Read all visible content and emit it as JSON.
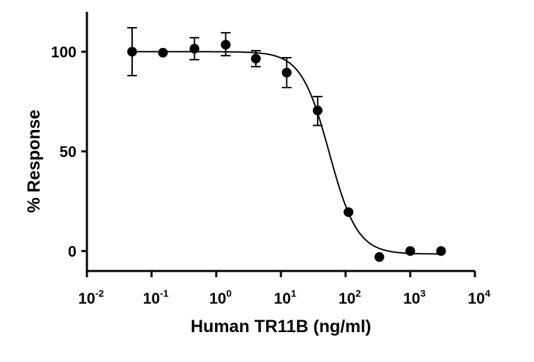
{
  "chart_data": {
    "type": "scatter",
    "title": "",
    "xlabel": "Human TR11B (ng/ml)",
    "ylabel": "% Response",
    "xscale": "log",
    "xlim": [
      0.01,
      10000
    ],
    "ylim": [
      -10,
      120
    ],
    "x_ticks": [
      {
        "base": "10",
        "exp": "-2",
        "value": 0.01
      },
      {
        "base": "10",
        "exp": "-1",
        "value": 0.1
      },
      {
        "base": "10",
        "exp": "0",
        "value": 1
      },
      {
        "base": "10",
        "exp": "1",
        "value": 10
      },
      {
        "base": "10",
        "exp": "2",
        "value": 100
      },
      {
        "base": "10",
        "exp": "3",
        "value": 1000
      },
      {
        "base": "10",
        "exp": "4",
        "value": 10000
      }
    ],
    "y_ticks": [
      "0",
      "50",
      "100"
    ],
    "grid": false,
    "points": [
      {
        "x": 0.05,
        "y": 100,
        "err_low": 88,
        "err_high": 112
      },
      {
        "x": 0.15,
        "y": 99.5
      },
      {
        "x": 0.46,
        "y": 101.5,
        "err_low": 96,
        "err_high": 107
      },
      {
        "x": 1.4,
        "y": 103.5,
        "err_low": 98,
        "err_high": 109.5
      },
      {
        "x": 4.1,
        "y": 96.5,
        "err_low": 92.5,
        "err_high": 100.5
      },
      {
        "x": 12.3,
        "y": 89.5,
        "err_low": 82,
        "err_high": 97
      },
      {
        "x": 37,
        "y": 70.5,
        "err_low": 63,
        "err_high": 77.5
      },
      {
        "x": 111,
        "y": 19.5
      },
      {
        "x": 333,
        "y": -3
      },
      {
        "x": 1000,
        "y": 0
      },
      {
        "x": 3000,
        "y": 0
      }
    ],
    "fit": {
      "model": "4PL",
      "top": 100,
      "bottom": -1.5,
      "ec50": 56,
      "hill": 2
    }
  }
}
